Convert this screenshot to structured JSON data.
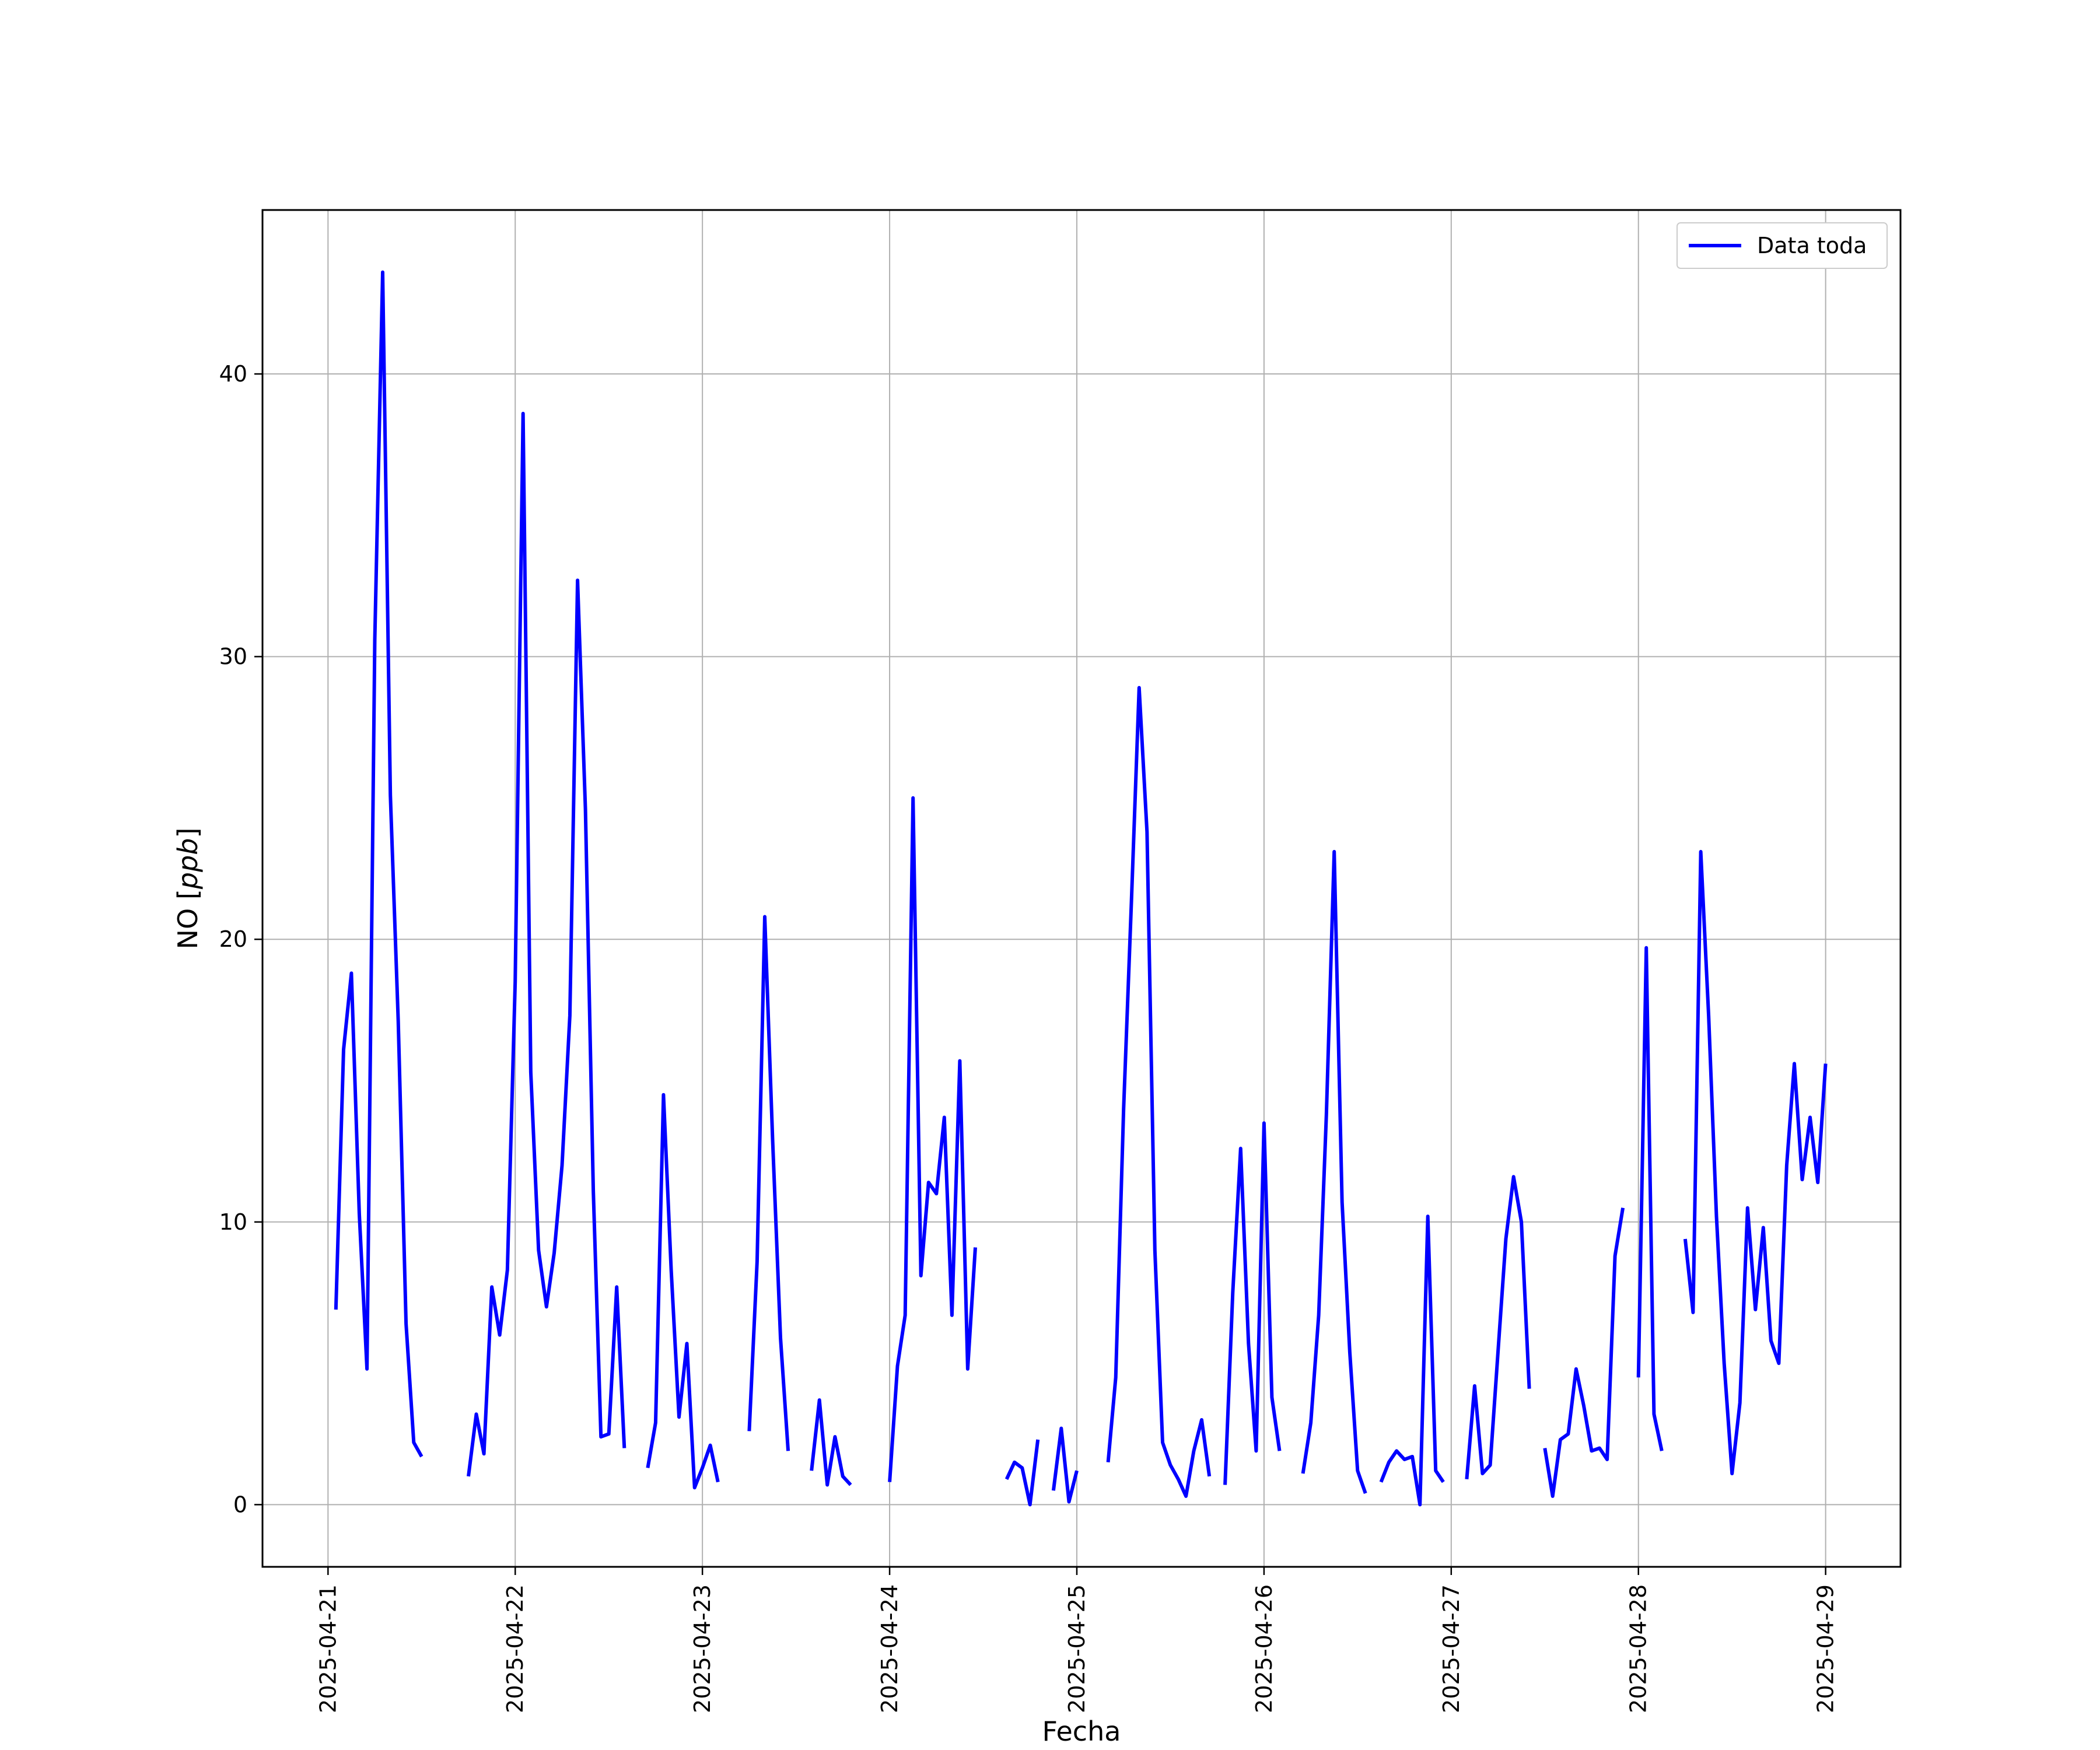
{
  "chart_data": {
    "type": "line",
    "title": "",
    "xlabel": "Fecha",
    "ylabel": "NO [ppb]",
    "ylabel_prefix": "NO [",
    "ylabel_italic": "ppb",
    "ylabel_suffix": "]",
    "xlim": [
      -0.35,
      8.4
    ],
    "ylim": [
      -2.2,
      45.8
    ],
    "yticks": [
      0,
      10,
      20,
      30,
      40
    ],
    "xticks": [
      {
        "label": "2025-04-21",
        "value": 0
      },
      {
        "label": "2025-04-22",
        "value": 1
      },
      {
        "label": "2025-04-23",
        "value": 2
      },
      {
        "label": "2025-04-24",
        "value": 3
      },
      {
        "label": "2025-04-25",
        "value": 4
      },
      {
        "label": "2025-04-26",
        "value": 5
      },
      {
        "label": "2025-04-27",
        "value": 6
      },
      {
        "label": "2025-04-28",
        "value": 7
      },
      {
        "label": "2025-04-29",
        "value": 8
      }
    ],
    "x_unit": "days since 2025-04-21",
    "grid": true,
    "legend": {
      "position": "top-right",
      "entries": [
        "Data toda"
      ]
    },
    "series": [
      {
        "name": "Data toda",
        "color": "#0000ff",
        "segments": [
          [
            [
              0.042,
              6.9
            ],
            [
              0.083,
              16.1
            ],
            [
              0.125,
              18.8
            ],
            [
              0.167,
              10.3
            ],
            [
              0.208,
              4.8
            ],
            [
              0.25,
              30.6
            ],
            [
              0.292,
              43.6
            ],
            [
              0.333,
              25.1
            ],
            [
              0.375,
              17.1
            ],
            [
              0.417,
              6.4
            ],
            [
              0.458,
              2.2
            ],
            [
              0.5,
              1.7
            ]
          ],
          [
            [
              0.75,
              1.0
            ],
            [
              0.792,
              3.2
            ],
            [
              0.833,
              1.8
            ],
            [
              0.875,
              7.7
            ],
            [
              0.917,
              6.0
            ],
            [
              0.958,
              8.3
            ],
            [
              1.0,
              18.5
            ],
            [
              1.042,
              38.6
            ],
            [
              1.083,
              15.3
            ],
            [
              1.125,
              9.0
            ],
            [
              1.167,
              7.0
            ],
            [
              1.208,
              8.9
            ],
            [
              1.25,
              12.0
            ],
            [
              1.292,
              17.3
            ],
            [
              1.333,
              32.7
            ],
            [
              1.375,
              24.6
            ],
            [
              1.417,
              11.1
            ],
            [
              1.458,
              2.4
            ],
            [
              1.5,
              2.5
            ],
            [
              1.542,
              7.7
            ],
            [
              1.583,
              2.0
            ]
          ],
          [
            [
              1.708,
              1.3
            ],
            [
              1.75,
              2.9
            ],
            [
              1.792,
              14.5
            ],
            [
              1.833,
              8.3
            ],
            [
              1.875,
              3.1
            ],
            [
              1.917,
              5.7
            ],
            [
              1.958,
              0.6
            ],
            [
              2.0,
              1.3
            ],
            [
              2.042,
              2.1
            ],
            [
              2.083,
              0.8
            ]
          ],
          [
            [
              2.25,
              2.6
            ],
            [
              2.292,
              8.6
            ],
            [
              2.333,
              20.8
            ],
            [
              2.375,
              12.9
            ],
            [
              2.417,
              5.9
            ],
            [
              2.458,
              1.9
            ]
          ],
          [
            [
              2.583,
              1.2
            ],
            [
              2.625,
              3.7
            ],
            [
              2.667,
              0.7
            ],
            [
              2.708,
              2.4
            ],
            [
              2.75,
              1.0
            ],
            [
              2.792,
              0.7
            ]
          ],
          [
            [
              3.0,
              0.8
            ],
            [
              3.042,
              4.9
            ],
            [
              3.083,
              6.7
            ],
            [
              3.125,
              25.0
            ],
            [
              3.167,
              8.1
            ],
            [
              3.208,
              11.4
            ],
            [
              3.25,
              11.0
            ],
            [
              3.292,
              13.7
            ],
            [
              3.333,
              6.7
            ],
            [
              3.375,
              15.7
            ],
            [
              3.417,
              4.8
            ],
            [
              3.458,
              9.1
            ]
          ],
          [
            [
              3.625,
              0.9
            ],
            [
              3.667,
              1.5
            ],
            [
              3.708,
              1.3
            ],
            [
              3.75,
              0.0
            ],
            [
              3.792,
              2.3
            ]
          ],
          [
            [
              3.875,
              0.5
            ],
            [
              3.917,
              2.7
            ],
            [
              3.958,
              0.1
            ],
            [
              4.0,
              1.2
            ]
          ],
          [
            [
              4.167,
              1.5
            ],
            [
              4.208,
              4.5
            ],
            [
              4.25,
              14.0
            ],
            [
              4.292,
              21.4
            ],
            [
              4.333,
              28.9
            ],
            [
              4.375,
              23.8
            ],
            [
              4.417,
              9.0
            ],
            [
              4.458,
              2.2
            ],
            [
              4.5,
              1.4
            ],
            [
              4.542,
              0.9
            ],
            [
              4.583,
              0.3
            ],
            [
              4.625,
              1.9
            ],
            [
              4.667,
              3.0
            ],
            [
              4.708,
              1.0
            ]
          ],
          [
            [
              4.792,
              0.7
            ],
            [
              4.833,
              7.5
            ],
            [
              4.875,
              12.6
            ],
            [
              4.917,
              5.7
            ],
            [
              4.958,
              1.9
            ],
            [
              5.0,
              13.5
            ],
            [
              5.042,
              3.8
            ],
            [
              5.083,
              1.9
            ]
          ],
          [
            [
              5.208,
              1.1
            ],
            [
              5.25,
              2.9
            ],
            [
              5.292,
              6.7
            ],
            [
              5.333,
              13.8
            ],
            [
              5.375,
              23.1
            ],
            [
              5.417,
              10.7
            ],
            [
              5.458,
              5.4
            ],
            [
              5.5,
              1.2
            ],
            [
              5.542,
              0.4
            ]
          ],
          [
            [
              5.625,
              0.8
            ],
            [
              5.667,
              1.5
            ],
            [
              5.708,
              1.9
            ],
            [
              5.75,
              1.6
            ],
            [
              5.792,
              1.7
            ],
            [
              5.833,
              0.0
            ],
            [
              5.875,
              10.2
            ],
            [
              5.917,
              1.2
            ],
            [
              5.958,
              0.8
            ]
          ],
          [
            [
              6.083,
              0.9
            ],
            [
              6.125,
              4.2
            ],
            [
              6.167,
              1.1
            ],
            [
              6.208,
              1.4
            ],
            [
              6.25,
              5.4
            ],
            [
              6.292,
              9.4
            ],
            [
              6.333,
              11.6
            ],
            [
              6.375,
              10.0
            ],
            [
              6.417,
              4.1
            ]
          ],
          [
            [
              6.5,
              2.0
            ],
            [
              6.542,
              0.3
            ],
            [
              6.583,
              2.3
            ],
            [
              6.625,
              2.5
            ],
            [
              6.667,
              4.8
            ],
            [
              6.708,
              3.5
            ],
            [
              6.75,
              1.9
            ],
            [
              6.792,
              2.0
            ],
            [
              6.833,
              1.6
            ],
            [
              6.875,
              8.8
            ],
            [
              6.917,
              10.5
            ]
          ],
          [
            [
              7.0,
              4.5
            ],
            [
              7.042,
              19.7
            ],
            [
              7.083,
              3.2
            ],
            [
              7.125,
              1.9
            ]
          ],
          [
            [
              7.25,
              9.4
            ],
            [
              7.292,
              6.8
            ],
            [
              7.333,
              23.1
            ],
            [
              7.375,
              17.3
            ],
            [
              7.417,
              10.2
            ],
            [
              7.458,
              5.0
            ],
            [
              7.5,
              1.1
            ],
            [
              7.542,
              3.6
            ],
            [
              7.583,
              10.5
            ],
            [
              7.625,
              6.9
            ],
            [
              7.667,
              9.8
            ],
            [
              7.708,
              5.8
            ],
            [
              7.75,
              5.0
            ],
            [
              7.792,
              12.0
            ],
            [
              7.833,
              15.6
            ],
            [
              7.875,
              11.5
            ],
            [
              7.917,
              13.7
            ],
            [
              7.958,
              11.4
            ],
            [
              8.0,
              15.6
            ]
          ]
        ]
      }
    ]
  }
}
